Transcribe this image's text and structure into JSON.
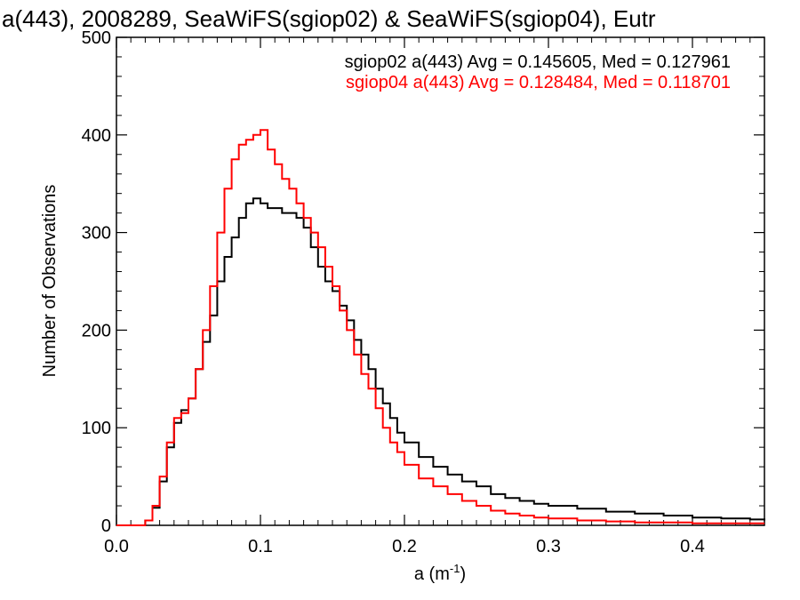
{
  "chart_data": {
    "type": "line",
    "title": "a(443), 2008289, SeaWiFS(sgiop02) & SeaWiFS(sgiop04), Eutr",
    "xlabel": "a (m",
    "xlabel_sup": "-1",
    "xlabel_close": ")",
    "ylabel": "Number of Observations",
    "xlim": [
      0.0,
      0.45
    ],
    "ylim": [
      0,
      500
    ],
    "x_ticks": [
      0.0,
      0.1,
      0.2,
      0.3,
      0.4
    ],
    "x_tick_labels": [
      "0.0",
      "0.1",
      "0.2",
      "0.3",
      "0.4"
    ],
    "y_ticks": [
      0,
      100,
      200,
      300,
      400,
      500
    ],
    "y_tick_labels": [
      "0",
      "100",
      "200",
      "300",
      "400",
      "500"
    ],
    "grid": false,
    "legend_position": "top-right",
    "series": [
      {
        "name": "sgiop02 a(443) Avg = 0.145605, Med = 0.127961",
        "color": "#000000",
        "x": [
          0.0,
          0.01,
          0.015,
          0.02,
          0.025,
          0.03,
          0.035,
          0.04,
          0.045,
          0.05,
          0.055,
          0.06,
          0.065,
          0.07,
          0.075,
          0.08,
          0.085,
          0.09,
          0.095,
          0.1,
          0.105,
          0.11,
          0.115,
          0.12,
          0.125,
          0.13,
          0.135,
          0.14,
          0.145,
          0.15,
          0.155,
          0.16,
          0.165,
          0.17,
          0.175,
          0.18,
          0.185,
          0.19,
          0.195,
          0.2,
          0.21,
          0.22,
          0.23,
          0.24,
          0.25,
          0.26,
          0.27,
          0.28,
          0.29,
          0.3,
          0.32,
          0.34,
          0.36,
          0.38,
          0.4,
          0.42,
          0.44,
          0.45
        ],
        "y": [
          0,
          0,
          0,
          5,
          18,
          45,
          80,
          105,
          118,
          130,
          160,
          188,
          215,
          250,
          275,
          295,
          315,
          330,
          335,
          330,
          325,
          325,
          320,
          320,
          315,
          305,
          285,
          265,
          250,
          240,
          225,
          210,
          190,
          175,
          160,
          140,
          125,
          110,
          95,
          85,
          70,
          60,
          52,
          45,
          40,
          32,
          28,
          25,
          22,
          20,
          17,
          14,
          12,
          10,
          8,
          7,
          6,
          5
        ]
      },
      {
        "name": "sgiop04 a(443) Avg = 0.128484, Med = 0.118701",
        "color": "#ff0000",
        "x": [
          0.0,
          0.01,
          0.015,
          0.02,
          0.025,
          0.03,
          0.035,
          0.04,
          0.045,
          0.05,
          0.055,
          0.06,
          0.065,
          0.07,
          0.075,
          0.08,
          0.085,
          0.09,
          0.095,
          0.1,
          0.105,
          0.11,
          0.115,
          0.12,
          0.125,
          0.13,
          0.135,
          0.14,
          0.145,
          0.15,
          0.155,
          0.16,
          0.165,
          0.17,
          0.175,
          0.18,
          0.185,
          0.19,
          0.195,
          0.2,
          0.21,
          0.22,
          0.23,
          0.24,
          0.25,
          0.26,
          0.27,
          0.28,
          0.29,
          0.3,
          0.32,
          0.34,
          0.36,
          0.38,
          0.4,
          0.42,
          0.44,
          0.45
        ],
        "y": [
          0,
          0,
          0,
          5,
          20,
          50,
          85,
          110,
          115,
          130,
          160,
          200,
          245,
          300,
          345,
          375,
          390,
          395,
          400,
          405,
          385,
          370,
          355,
          345,
          330,
          315,
          300,
          285,
          265,
          245,
          220,
          200,
          175,
          155,
          140,
          120,
          100,
          85,
          75,
          62,
          48,
          40,
          32,
          25,
          20,
          15,
          12,
          10,
          8,
          7,
          5,
          4,
          3,
          3,
          2,
          2,
          2,
          2
        ]
      }
    ]
  }
}
